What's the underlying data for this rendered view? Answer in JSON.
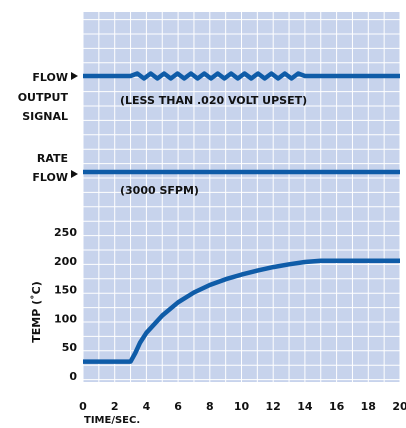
{
  "chart_data": {
    "type": "line",
    "xlabel": "TIME/SEC.",
    "ylabel": "TEMP (˚C)",
    "xlim": [
      0,
      20
    ],
    "ylim": [
      0,
      250
    ],
    "xticks": [
      0,
      2,
      4,
      6,
      8,
      10,
      12,
      14,
      16,
      18,
      20
    ],
    "yticks": [
      0,
      50,
      100,
      150,
      200,
      250
    ],
    "grid": true,
    "series": [
      {
        "x": [
          0,
          3,
          3.3,
          3.6,
          4,
          5,
          6,
          7,
          8,
          9,
          10,
          11,
          12,
          13,
          14,
          15,
          16,
          18,
          20
        ],
        "values": [
          25,
          25,
          40,
          58,
          75,
          105,
          128,
          145,
          158,
          168,
          176,
          183,
          189,
          194,
          198,
          200,
          200,
          200,
          200
        ]
      }
    ],
    "signals": [
      {
        "label_lines": [
          "FLOW",
          "OUTPUT",
          "SIGNAL"
        ],
        "annotation": "(LESS THAN .020 VOLT UPSET)",
        "disturbance_x": [
          3,
          14
        ]
      },
      {
        "label_lines": [
          "RATE",
          "FLOW"
        ],
        "annotation": "(3000 SFPM)"
      }
    ],
    "colors": {
      "background": "#c7d3ec",
      "grid": "#ffffff",
      "line": "#0f5ca8"
    }
  }
}
